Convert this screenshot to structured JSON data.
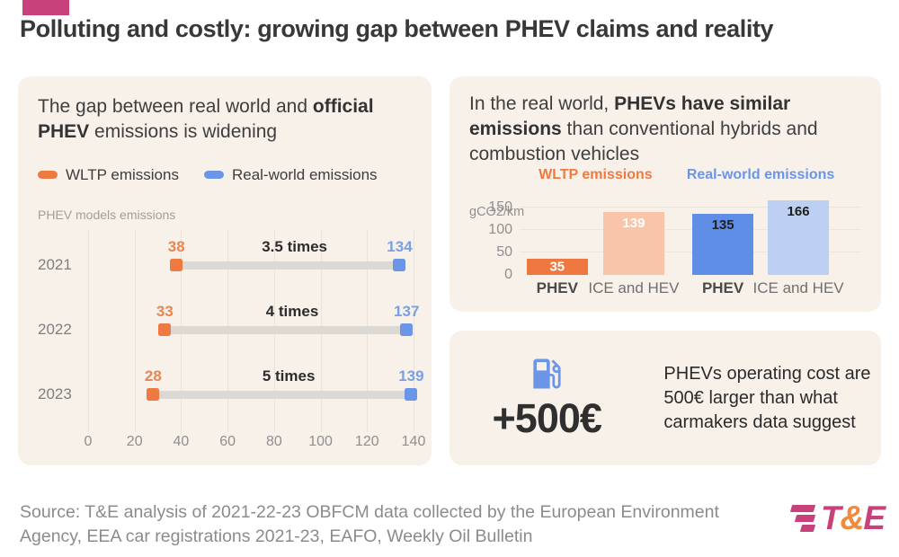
{
  "header": {
    "title": "Polluting and costly: growing gap between PHEV claims and reality",
    "brand_color": "#c9417b"
  },
  "gap_panel": {
    "heading_segments": [
      {
        "t": "The gap between real world and ",
        "b": false
      },
      {
        "t": "official PHEV",
        "b": true
      },
      {
        "t": " emissions is widening",
        "b": false
      }
    ],
    "axis_note": "PHEV models emissions"
  },
  "bars_panel": {
    "heading_segments": [
      {
        "t": "In the real world, ",
        "b": false
      },
      {
        "t": "PHEVs have similar emissions",
        "b": true
      },
      {
        "t": " than conventional hybrids and combustion vehicles",
        "b": false
      }
    ]
  },
  "chart_data": [
    {
      "id": "phev-gap-dumbbell",
      "type": "scatter",
      "subtype": "dumbbell",
      "title": "The gap between real world and official PHEV emissions is widening",
      "axis_note": "PHEV models emissions",
      "categories": [
        "2021",
        "2022",
        "2023"
      ],
      "series": [
        {
          "name": "WLTP emissions",
          "color": "#ee7a41",
          "label_color": "#e9854f",
          "values": [
            38,
            33,
            28
          ]
        },
        {
          "name": "Real-world emissions",
          "color": "#6b96e8",
          "label_color": "#79a0e6",
          "values": [
            134,
            137,
            139
          ]
        }
      ],
      "gap_labels": [
        "3.5 times",
        "4 times",
        "5 times"
      ],
      "xlim": [
        0,
        140
      ],
      "x_ticks": [
        0,
        20,
        40,
        60,
        80,
        100,
        120,
        140
      ],
      "grid": true,
      "legend_position": "top-left",
      "connector_color": "#dcd9d4"
    },
    {
      "id": "real-world-bars",
      "type": "bar",
      "title": "In the real world, PHEVs have similar emissions than conventional hybrids and combustion vehicles",
      "ylabel": "gCO2/km",
      "ylim": [
        0,
        180
      ],
      "y_ticks": [
        0,
        50,
        100,
        150
      ],
      "grid": true,
      "groups": [
        {
          "name": "WLTP emissions",
          "name_color": "#ee7a41",
          "bars": [
            {
              "category": "PHEV",
              "value": 35,
              "color": "#ef7840",
              "label_color": "#ffffff",
              "category_bold": true
            },
            {
              "category": "ICE and HEV",
              "value": 139,
              "color": "#f8c5a9",
              "label_color": "#ffffff",
              "category_bold": false
            }
          ]
        },
        {
          "name": "Real-world emissions",
          "name_color": "#6b96e8",
          "bars": [
            {
              "category": "PHEV",
              "value": 135,
              "color": "#5f8ee6",
              "label_color": "#1f1f1f",
              "category_bold": true
            },
            {
              "category": "ICE and HEV",
              "value": 166,
              "color": "#bdcff2",
              "label_color": "#1f1f1f",
              "category_bold": false
            }
          ]
        }
      ]
    }
  ],
  "cost_panel": {
    "icon": "fuel-pump-icon",
    "icon_color": "#6b96e8",
    "amount": "+500€",
    "description": "PHEVs operating cost are 500€ larger than what carmakers data suggest"
  },
  "footer": {
    "source": "Source: T&E analysis of 2021-22-23 OBFCM data collected by the European Environment Agency, EEA car registrations 2021-23, EAFO, Weekly Oil Bulletin",
    "logo": {
      "t": "T",
      "amp": "&",
      "e": "E"
    }
  }
}
